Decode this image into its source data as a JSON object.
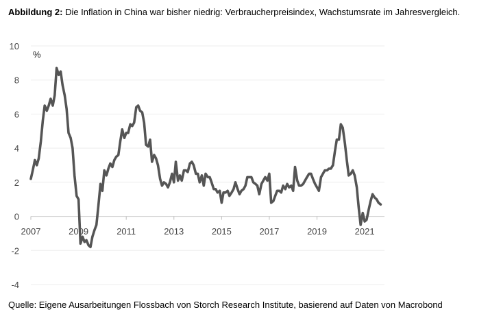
{
  "title_bold": "Abbildung 2:",
  "title_text": "Die Inflation in China war bisher niedrig: Verbraucherpreisindex, Wachstumsrate im Jahresvergleich.",
  "source": "Quelle: Eigene Ausarbeitungen Flossbach von Storch Research Institute, basierend auf Daten von Macrobond",
  "chart_data": {
    "type": "line",
    "unit_label": "%",
    "ylim": [
      -4,
      10
    ],
    "yticks": [
      -4,
      -2,
      0,
      2,
      4,
      6,
      8,
      10
    ],
    "xlim": [
      2007.0,
      2021.83
    ],
    "xticks": [
      2007,
      2009,
      2011,
      2013,
      2015,
      2017,
      2019,
      2021
    ],
    "grid": "horizontal",
    "line_color": "#555555",
    "series": [
      {
        "values": [
          [
            2007.0,
            2.2
          ],
          [
            2007.08,
            2.7
          ],
          [
            2007.17,
            3.3
          ],
          [
            2007.25,
            3.0
          ],
          [
            2007.33,
            3.4
          ],
          [
            2007.42,
            4.4
          ],
          [
            2007.5,
            5.6
          ],
          [
            2007.58,
            6.5
          ],
          [
            2007.67,
            6.2
          ],
          [
            2007.75,
            6.5
          ],
          [
            2007.83,
            6.9
          ],
          [
            2007.92,
            6.5
          ],
          [
            2008.0,
            7.1
          ],
          [
            2008.08,
            8.7
          ],
          [
            2008.17,
            8.3
          ],
          [
            2008.25,
            8.5
          ],
          [
            2008.33,
            7.7
          ],
          [
            2008.42,
            7.1
          ],
          [
            2008.5,
            6.3
          ],
          [
            2008.58,
            4.9
          ],
          [
            2008.67,
            4.6
          ],
          [
            2008.75,
            4.0
          ],
          [
            2008.83,
            2.4
          ],
          [
            2008.92,
            1.2
          ],
          [
            2009.0,
            1.0
          ],
          [
            2009.08,
            -1.6
          ],
          [
            2009.17,
            -1.2
          ],
          [
            2009.25,
            -1.5
          ],
          [
            2009.33,
            -1.4
          ],
          [
            2009.42,
            -1.7
          ],
          [
            2009.5,
            -1.8
          ],
          [
            2009.58,
            -1.2
          ],
          [
            2009.67,
            -0.8
          ],
          [
            2009.75,
            -0.5
          ],
          [
            2009.83,
            0.6
          ],
          [
            2009.92,
            1.9
          ],
          [
            2010.0,
            1.5
          ],
          [
            2010.08,
            2.7
          ],
          [
            2010.17,
            2.4
          ],
          [
            2010.25,
            2.8
          ],
          [
            2010.33,
            3.1
          ],
          [
            2010.42,
            2.9
          ],
          [
            2010.5,
            3.3
          ],
          [
            2010.58,
            3.5
          ],
          [
            2010.67,
            3.6
          ],
          [
            2010.75,
            4.4
          ],
          [
            2010.83,
            5.1
          ],
          [
            2010.92,
            4.6
          ],
          [
            2011.0,
            4.9
          ],
          [
            2011.08,
            4.9
          ],
          [
            2011.17,
            5.4
          ],
          [
            2011.25,
            5.3
          ],
          [
            2011.33,
            5.5
          ],
          [
            2011.42,
            6.4
          ],
          [
            2011.5,
            6.5
          ],
          [
            2011.58,
            6.2
          ],
          [
            2011.67,
            6.1
          ],
          [
            2011.75,
            5.5
          ],
          [
            2011.83,
            4.2
          ],
          [
            2011.92,
            4.1
          ],
          [
            2012.0,
            4.5
          ],
          [
            2012.08,
            3.2
          ],
          [
            2012.17,
            3.6
          ],
          [
            2012.25,
            3.4
          ],
          [
            2012.33,
            3.0
          ],
          [
            2012.42,
            2.2
          ],
          [
            2012.5,
            1.8
          ],
          [
            2012.58,
            2.0
          ],
          [
            2012.67,
            1.9
          ],
          [
            2012.75,
            1.7
          ],
          [
            2012.83,
            2.0
          ],
          [
            2012.92,
            2.5
          ],
          [
            2013.0,
            2.0
          ],
          [
            2013.08,
            3.2
          ],
          [
            2013.17,
            2.1
          ],
          [
            2013.25,
            2.4
          ],
          [
            2013.33,
            2.1
          ],
          [
            2013.42,
            2.7
          ],
          [
            2013.5,
            2.7
          ],
          [
            2013.58,
            2.6
          ],
          [
            2013.67,
            3.1
          ],
          [
            2013.75,
            3.2
          ],
          [
            2013.83,
            3.0
          ],
          [
            2013.92,
            2.5
          ],
          [
            2014.0,
            2.5
          ],
          [
            2014.08,
            2.0
          ],
          [
            2014.17,
            2.4
          ],
          [
            2014.25,
            1.8
          ],
          [
            2014.33,
            2.5
          ],
          [
            2014.42,
            2.3
          ],
          [
            2014.5,
            2.3
          ],
          [
            2014.58,
            2.0
          ],
          [
            2014.67,
            1.6
          ],
          [
            2014.75,
            1.6
          ],
          [
            2014.83,
            1.4
          ],
          [
            2014.92,
            1.5
          ],
          [
            2015.0,
            0.8
          ],
          [
            2015.08,
            1.4
          ],
          [
            2015.17,
            1.4
          ],
          [
            2015.25,
            1.5
          ],
          [
            2015.33,
            1.2
          ],
          [
            2015.42,
            1.4
          ],
          [
            2015.5,
            1.6
          ],
          [
            2015.58,
            2.0
          ],
          [
            2015.67,
            1.6
          ],
          [
            2015.75,
            1.3
          ],
          [
            2015.83,
            1.5
          ],
          [
            2015.92,
            1.6
          ],
          [
            2016.0,
            1.8
          ],
          [
            2016.08,
            2.3
          ],
          [
            2016.17,
            2.3
          ],
          [
            2016.25,
            2.3
          ],
          [
            2016.33,
            2.0
          ],
          [
            2016.42,
            1.9
          ],
          [
            2016.5,
            1.8
          ],
          [
            2016.58,
            1.3
          ],
          [
            2016.67,
            1.9
          ],
          [
            2016.75,
            2.1
          ],
          [
            2016.83,
            2.3
          ],
          [
            2016.92,
            2.1
          ],
          [
            2017.0,
            2.5
          ],
          [
            2017.08,
            0.8
          ],
          [
            2017.17,
            0.9
          ],
          [
            2017.25,
            1.2
          ],
          [
            2017.33,
            1.5
          ],
          [
            2017.42,
            1.5
          ],
          [
            2017.5,
            1.4
          ],
          [
            2017.58,
            1.8
          ],
          [
            2017.67,
            1.6
          ],
          [
            2017.75,
            1.9
          ],
          [
            2017.83,
            1.7
          ],
          [
            2017.92,
            1.8
          ],
          [
            2018.0,
            1.5
          ],
          [
            2018.08,
            2.9
          ],
          [
            2018.17,
            2.1
          ],
          [
            2018.25,
            1.8
          ],
          [
            2018.33,
            1.8
          ],
          [
            2018.42,
            1.9
          ],
          [
            2018.5,
            2.1
          ],
          [
            2018.58,
            2.3
          ],
          [
            2018.67,
            2.5
          ],
          [
            2018.75,
            2.5
          ],
          [
            2018.83,
            2.2
          ],
          [
            2018.92,
            1.9
          ],
          [
            2019.0,
            1.7
          ],
          [
            2019.08,
            1.5
          ],
          [
            2019.17,
            2.3
          ],
          [
            2019.25,
            2.5
          ],
          [
            2019.33,
            2.7
          ],
          [
            2019.42,
            2.7
          ],
          [
            2019.5,
            2.8
          ],
          [
            2019.58,
            2.8
          ],
          [
            2019.67,
            3.0
          ],
          [
            2019.75,
            3.8
          ],
          [
            2019.83,
            4.5
          ],
          [
            2019.92,
            4.5
          ],
          [
            2020.0,
            5.4
          ],
          [
            2020.08,
            5.2
          ],
          [
            2020.17,
            4.3
          ],
          [
            2020.25,
            3.3
          ],
          [
            2020.33,
            2.4
          ],
          [
            2020.42,
            2.5
          ],
          [
            2020.5,
            2.7
          ],
          [
            2020.58,
            2.4
          ],
          [
            2020.67,
            1.7
          ],
          [
            2020.75,
            0.5
          ],
          [
            2020.83,
            -0.5
          ],
          [
            2020.92,
            0.2
          ],
          [
            2021.0,
            -0.3
          ],
          [
            2021.08,
            -0.2
          ],
          [
            2021.17,
            0.4
          ],
          [
            2021.25,
            0.9
          ],
          [
            2021.33,
            1.3
          ],
          [
            2021.42,
            1.1
          ],
          [
            2021.5,
            1.0
          ],
          [
            2021.58,
            0.8
          ],
          [
            2021.67,
            0.7
          ]
        ]
      }
    ]
  }
}
